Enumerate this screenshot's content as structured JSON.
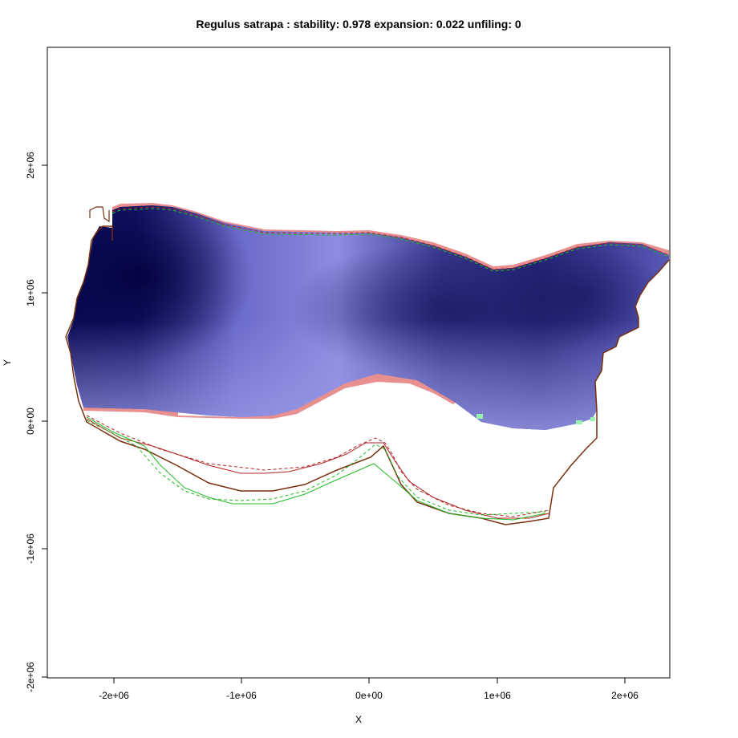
{
  "title": "Regulus satrapa : stability: 0.978 expansion: 0.022 unfiling: 0",
  "xlabel": "X",
  "ylabel": "Y",
  "x_ticks": [
    {
      "value": -2000000,
      "label": "-2e+06"
    },
    {
      "value": -1000000,
      "label": "-1e+06"
    },
    {
      "value": 0,
      "label": "0e+00"
    },
    {
      "value": 1000000,
      "label": "1e+06"
    },
    {
      "value": 2000000,
      "label": "2e+06"
    }
  ],
  "y_ticks": [
    {
      "value": -2000000,
      "label": "-2e+06"
    },
    {
      "value": -1000000,
      "label": "-1e+06"
    },
    {
      "value": 0,
      "label": "0e+00"
    },
    {
      "value": 1000000,
      "label": "1e+06"
    },
    {
      "value": 2000000,
      "label": "2e+06"
    }
  ],
  "xlim": [
    -2520000,
    2350000
  ],
  "ylim": [
    -2030000,
    2920000
  ],
  "colors": {
    "suitability_dark": "#020245",
    "suitability_mid": "#2e2e85",
    "suitability_light": "#9696e6",
    "range_loss": "#e89090",
    "range_gain": "#9af0b0",
    "outline_brown": "#7a2f0f",
    "outline_red": "#b22222",
    "outline_green": "#22bb22"
  }
}
